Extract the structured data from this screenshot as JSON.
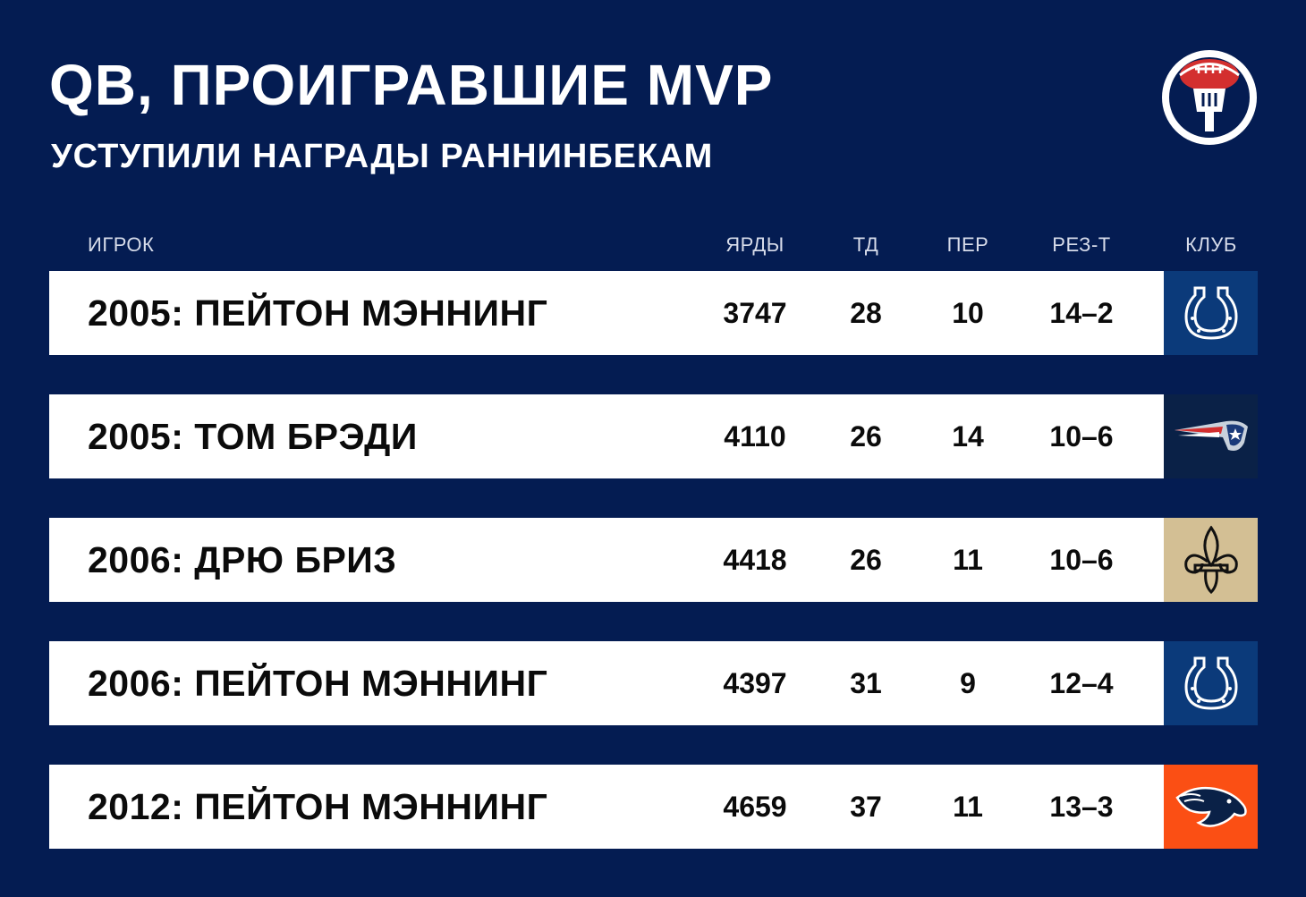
{
  "header": {
    "title": "QB, ПРОИГРАВШИЕ MVP",
    "subtitle": "УСТУПИЛИ НАГРАДЫ РАННИНБЕКАМ",
    "logo_icon": "football-tv-icon"
  },
  "columns": {
    "player": "ИГРОК",
    "yards": "ЯРДЫ",
    "td": "ТД",
    "int": "ПЕР",
    "record": "РЕЗ-Т",
    "club": "КЛУБ"
  },
  "rows": [
    {
      "player": "2005: ПЕЙТОН МЭННИНГ",
      "yards": "3747",
      "td": "28",
      "int": "10",
      "record": "14–2",
      "club_icon": "horseshoe-icon",
      "club_color": "#0b3a7a"
    },
    {
      "player": "2005: ТОМ БРЭДИ",
      "yards": "4110",
      "td": "26",
      "int": "14",
      "record": "10–6",
      "club_icon": "patriot-icon",
      "club_color": "#0a2147"
    },
    {
      "player": "2006: ДРЮ БРИЗ",
      "yards": "4418",
      "td": "26",
      "int": "11",
      "record": "10–6",
      "club_icon": "fleur-de-lis-icon",
      "club_color": "#d3bf94"
    },
    {
      "player": "2006: ПЕЙТОН МЭННИНГ",
      "yards": "4397",
      "td": "31",
      "int": "9",
      "record": "12–4",
      "club_icon": "horseshoe-icon",
      "club_color": "#0b3a7a"
    },
    {
      "player": "2012: ПЕЙТОН МЭННИНГ",
      "yards": "4659",
      "td": "37",
      "int": "11",
      "record": "13–3",
      "club_icon": "bronco-icon",
      "club_color": "#fb4f14"
    }
  ],
  "colors": {
    "background": "#041c52",
    "row_background": "#ffffff",
    "accent_red": "#d32f2f"
  }
}
